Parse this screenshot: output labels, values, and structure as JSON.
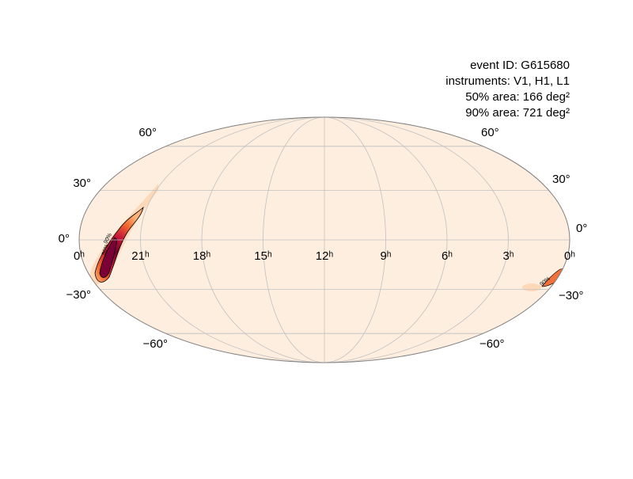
{
  "annotations": [
    "event ID: G615680",
    "instruments: V1, H1, L1",
    "50% area: 166 deg²",
    "90% area: 721 deg²"
  ],
  "lat_labels_left": [
    "60°",
    "30°",
    "0°",
    "−30°",
    "−60°"
  ],
  "lat_labels_right": [
    "60°",
    "30°",
    "0°",
    "−30°",
    "−60°"
  ],
  "ra_labels": [
    "0ʰ",
    "21ʰ",
    "18ʰ",
    "15ʰ",
    "12ʰ",
    "9ʰ",
    "6ʰ",
    "3ʰ",
    "0ʰ"
  ],
  "contour_labels": [
    "50%",
    "90%",
    "90%"
  ]
}
